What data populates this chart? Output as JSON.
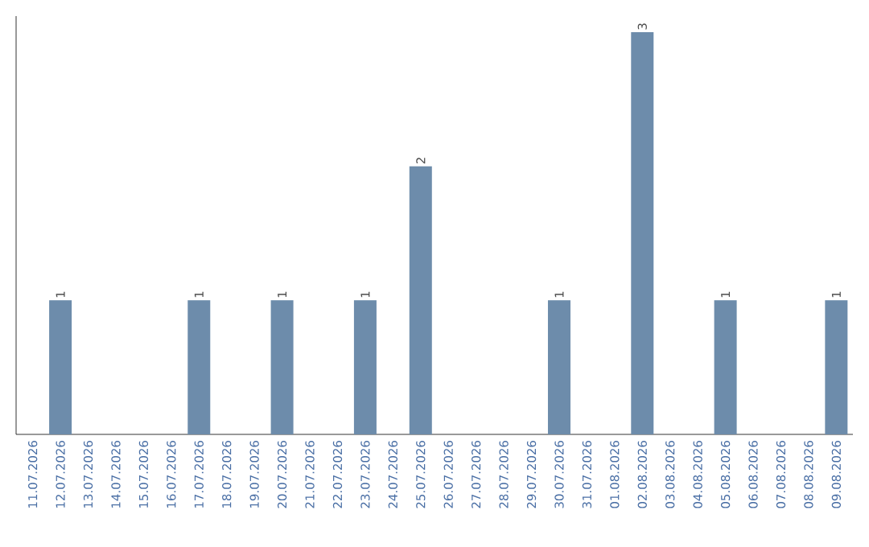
{
  "chart_data": {
    "type": "bar",
    "categories": [
      "11.07.2026",
      "12.07.2026",
      "13.07.2026",
      "14.07.2026",
      "15.07.2026",
      "16.07.2026",
      "17.07.2026",
      "18.07.2026",
      "19.07.2026",
      "20.07.2026",
      "21.07.2026",
      "22.07.2026",
      "23.07.2026",
      "24.07.2026",
      "25.07.2026",
      "26.07.2026",
      "27.07.2026",
      "28.07.2026",
      "29.07.2026",
      "30.07.2026",
      "31.07.2026",
      "01.08.2026",
      "02.08.2026",
      "03.08.2026",
      "04.08.2026",
      "05.08.2026",
      "06.08.2026",
      "07.08.2026",
      "08.08.2026",
      "09.08.2026"
    ],
    "values": [
      0,
      1,
      0,
      0,
      0,
      0,
      1,
      0,
      0,
      1,
      0,
      0,
      1,
      0,
      2,
      0,
      0,
      0,
      0,
      1,
      0,
      0,
      3,
      0,
      0,
      1,
      0,
      0,
      0,
      1
    ],
    "value_labels": [
      null,
      "1",
      null,
      null,
      null,
      null,
      "1",
      null,
      null,
      "1",
      null,
      null,
      "1",
      null,
      "2",
      null,
      null,
      null,
      null,
      "1",
      null,
      null,
      "3",
      null,
      null,
      "1",
      null,
      null,
      null,
      "1"
    ],
    "color": "#6d8cab",
    "tick_labels": "x"
  }
}
